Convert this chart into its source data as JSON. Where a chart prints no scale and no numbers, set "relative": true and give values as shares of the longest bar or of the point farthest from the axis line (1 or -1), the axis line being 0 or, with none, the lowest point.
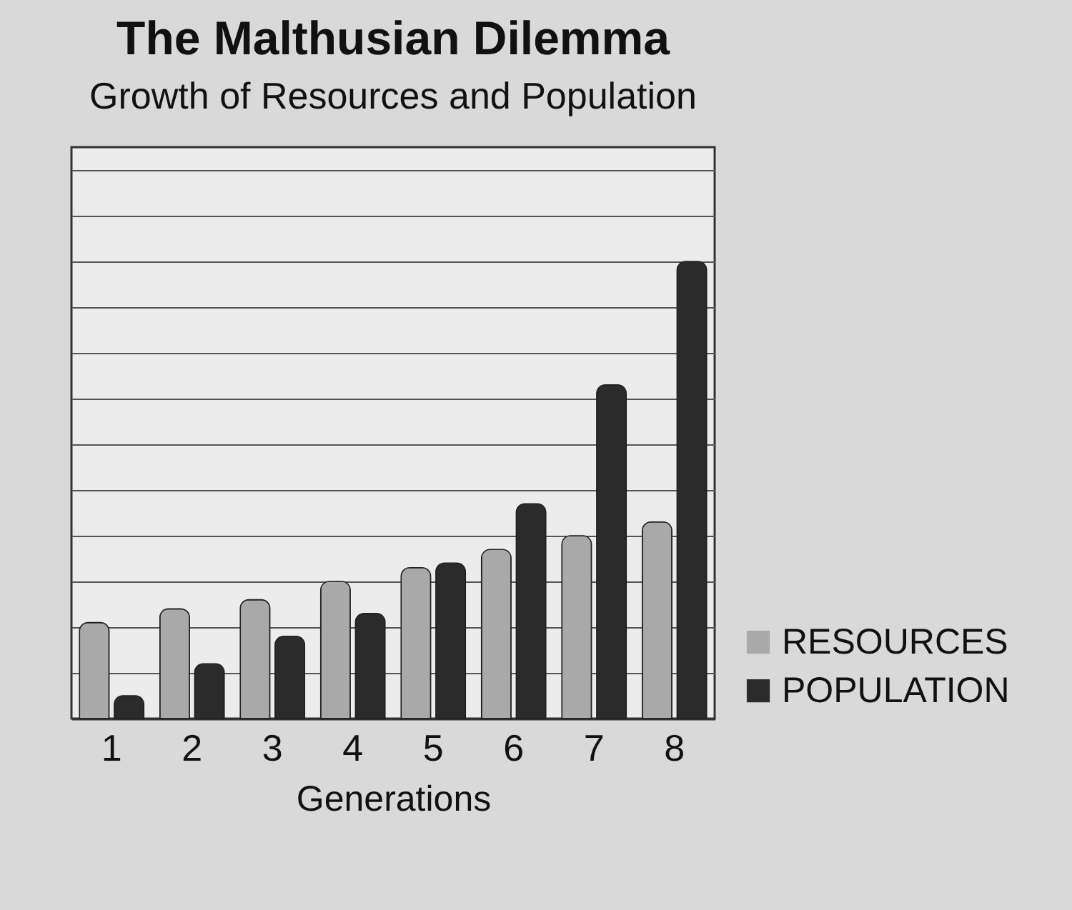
{
  "chart_data": {
    "type": "bar",
    "title": "The Malthusian Dilemma",
    "subtitle": "Growth of Resources and Population",
    "xlabel": "Generations",
    "categories": [
      "1",
      "2",
      "3",
      "4",
      "5",
      "6",
      "7",
      "8"
    ],
    "relative": true,
    "grid": "y",
    "legend": "bottom right",
    "series": [
      {
        "name": "RESOURCES",
        "color": "#a9a9a9",
        "values": [
          0.21,
          0.24,
          0.26,
          0.3,
          0.33,
          0.37,
          0.4,
          0.43
        ]
      },
      {
        "name": "POPULATION",
        "color": "#2b2b2b",
        "values": [
          0.05,
          0.12,
          0.18,
          0.23,
          0.34,
          0.47,
          0.73,
          1
        ]
      }
    ]
  }
}
